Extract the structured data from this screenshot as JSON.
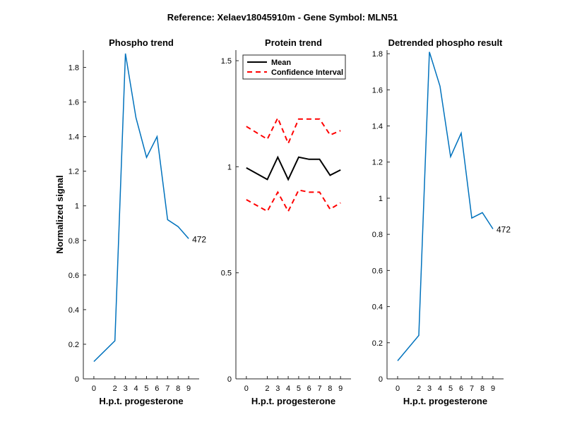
{
  "suptitle": "Reference:  Xelaev18045910m - Gene Symbol:  MLN51",
  "chart_data": [
    {
      "type": "line",
      "title": "Phospho trend",
      "xlabel": "H.p.t. progesterone",
      "ylabel": "Normalized signal",
      "x": [
        0,
        2,
        3,
        4,
        5,
        6,
        7,
        8,
        9
      ],
      "xlim": [
        -1,
        10
      ],
      "ylim": [
        0,
        1.9
      ],
      "yticks": [
        0,
        0.2,
        0.4,
        0.6,
        0.8,
        1,
        1.2,
        1.4,
        1.6,
        1.8
      ],
      "ytick_labels": [
        "0",
        "0.2",
        "0.4",
        "0.6",
        "0.8",
        "1",
        "1.2",
        "1.4",
        "1.6",
        "1.8"
      ],
      "series": [
        {
          "values": [
            0.1,
            0.22,
            1.88,
            1.51,
            1.28,
            1.4,
            0.92,
            0.88,
            0.81
          ],
          "color": "#0072BD",
          "dash": ""
        }
      ],
      "annotation": {
        "text": "472",
        "x": 9,
        "y": 0.81
      }
    },
    {
      "type": "line",
      "title": "Protein trend",
      "xlabel": "H.p.t. progesterone",
      "ylabel": "",
      "x": [
        0,
        2,
        3,
        4,
        5,
        6,
        7,
        8,
        9
      ],
      "xlim": [
        -1,
        10
      ],
      "ylim": [
        0,
        1.55
      ],
      "yticks": [
        0,
        0.5,
        1,
        1.5
      ],
      "ytick_labels": [
        "0",
        "0.5",
        "1",
        "1.5"
      ],
      "series": [
        {
          "name": "Mean",
          "values": [
            0.995,
            0.94,
            1.045,
            0.94,
            1.045,
            1.035,
            1.035,
            0.96,
            0.985
          ],
          "color": "#000000",
          "dash": ""
        },
        {
          "name": "Confidence Interval",
          "values": [
            1.19,
            1.13,
            1.23,
            1.11,
            1.225,
            1.225,
            1.225,
            1.15,
            1.17
          ],
          "color": "#ff0000",
          "dash": "7,5"
        },
        {
          "name": "",
          "values": [
            0.845,
            0.79,
            0.88,
            0.79,
            0.89,
            0.88,
            0.88,
            0.8,
            0.83
          ],
          "color": "#ff0000",
          "dash": "7,5"
        }
      ],
      "legend": {
        "placement": "top-left",
        "entries": [
          {
            "name": "Mean",
            "color": "#000000",
            "dash": ""
          },
          {
            "name": "Confidence Interval",
            "color": "#ff0000",
            "dash": "7,5"
          }
        ]
      }
    },
    {
      "type": "line",
      "title": "Detrended phospho result",
      "xlabel": "H.p.t. progesterone",
      "ylabel": "",
      "x": [
        0,
        2,
        3,
        4,
        5,
        6,
        7,
        8,
        9
      ],
      "xlim": [
        -1,
        10
      ],
      "ylim": [
        0,
        1.82
      ],
      "yticks": [
        0,
        0.2,
        0.4,
        0.6,
        0.8,
        1,
        1.2,
        1.4,
        1.6,
        1.8
      ],
      "ytick_labels": [
        "0",
        "0.2",
        "0.4",
        "0.6",
        "0.8",
        "1",
        "1.2",
        "1.4",
        "1.6",
        "1.8"
      ],
      "series": [
        {
          "values": [
            0.1,
            0.24,
            1.81,
            1.62,
            1.23,
            1.36,
            0.89,
            0.92,
            0.83
          ],
          "color": "#0072BD",
          "dash": ""
        }
      ],
      "annotation": {
        "text": "472",
        "x": 9,
        "y": 0.83
      }
    }
  ]
}
